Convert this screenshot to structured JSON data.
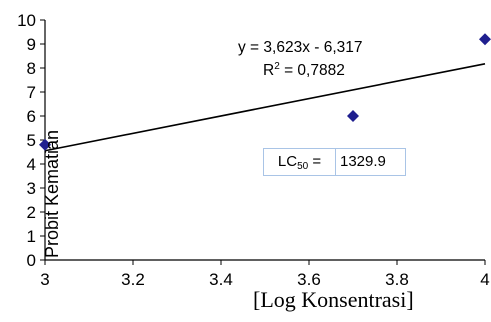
{
  "chart_data": {
    "type": "scatter",
    "xlabel": "[Log Konsentrasi]",
    "ylabel": "Probit Kematian",
    "xlim": [
      3,
      4
    ],
    "ylim": [
      0,
      10
    ],
    "x_ticks": [
      "3",
      "3.2",
      "3.4",
      "3.6",
      "3.8",
      "4"
    ],
    "y_ticks": [
      "0",
      "1",
      "2",
      "3",
      "4",
      "5",
      "6",
      "7",
      "8",
      "9",
      "10"
    ],
    "points": [
      {
        "x": 3.0,
        "y": 4.8
      },
      {
        "x": 3.7,
        "y": 6.0
      },
      {
        "x": 4.0,
        "y": 9.2
      }
    ],
    "trendline": {
      "slope": 3.623,
      "intercept": -6.317
    },
    "equation": "y = 3,623x - 6,317",
    "r_squared_label": "R",
    "r_squared_sup": "2",
    "r_squared_value": " = 0,7882",
    "lc50_label": "LC",
    "lc50_sub": "50",
    "lc50_eq": " =",
    "lc50_value": "1329.9",
    "marker_color": "#1f1f8f",
    "line_color": "#000000"
  }
}
